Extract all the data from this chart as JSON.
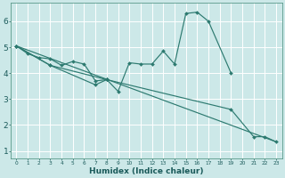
{
  "xlabel": "Humidex (Indice chaleur)",
  "background_color": "#cce8e8",
  "grid_color": "#ffffff",
  "line_color": "#2d7a70",
  "xlim": [
    -0.5,
    23.5
  ],
  "ylim": [
    0.7,
    6.7
  ],
  "line1_x": [
    0,
    1,
    2,
    3,
    4,
    5,
    6,
    7,
    8,
    9,
    10,
    11,
    12,
    13,
    14,
    15,
    16,
    17,
    19
  ],
  "line1_y": [
    5.05,
    4.75,
    4.6,
    4.55,
    4.3,
    4.45,
    4.35,
    3.7,
    3.75,
    3.3,
    4.4,
    4.35,
    4.35,
    4.85,
    4.35,
    6.3,
    6.35,
    6.0,
    4.0
  ],
  "line2_x": [
    0,
    3,
    7,
    8,
    19,
    21,
    22,
    23
  ],
  "line2_y": [
    5.05,
    4.3,
    3.55,
    3.75,
    2.6,
    1.55,
    1.55,
    1.35
  ],
  "line3_x": [
    0,
    23
  ],
  "line3_y": [
    5.05,
    1.35
  ],
  "line4_x": [
    0,
    3,
    8
  ],
  "line4_y": [
    5.05,
    4.3,
    3.75
  ]
}
